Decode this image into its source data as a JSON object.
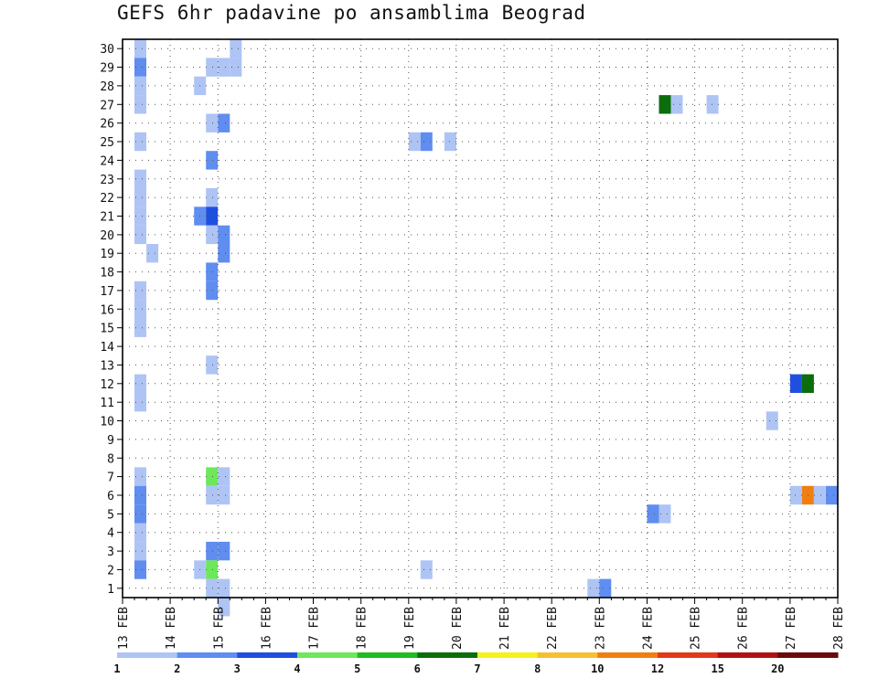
{
  "chart_data": {
    "type": "heatmap",
    "title": "GEFS 6hr padavine po ansamblima Beograd",
    "x_tick_labels": [
      "13 FEB",
      "14 FEB",
      "15 FEB",
      "16 FEB",
      "17 FEB",
      "18 FEB",
      "19 FEB",
      "20 FEB",
      "21 FEB",
      "22 FEB",
      "23 FEB",
      "24 FEB",
      "25 FEB",
      "26 FEB",
      "27 FEB",
      "28 FEB"
    ],
    "y_tick_labels": [
      "1",
      "2",
      "3",
      "4",
      "5",
      "6",
      "7",
      "8",
      "9",
      "10",
      "11",
      "12",
      "13",
      "14",
      "15",
      "16",
      "17",
      "18",
      "19",
      "20",
      "21",
      "22",
      "23",
      "24",
      "25",
      "26",
      "27",
      "28",
      "29",
      "30"
    ],
    "x_range": [
      "13 FEB",
      "28 FEB"
    ],
    "y_range": [
      1,
      30
    ],
    "time_step_hours": 6,
    "grid": true,
    "legend": {
      "placement": "bottom",
      "labels": [
        "1",
        "2",
        "3",
        "4",
        "5",
        "6",
        "7",
        "8",
        "10",
        "12",
        "15",
        "20"
      ],
      "colors": [
        "#aec4f4",
        "#5f8df0",
        "#1f4fe0",
        "#6ce85a",
        "#1fbd1f",
        "#0a6e0a",
        "#f7f01a",
        "#f5c02f",
        "#f07f10",
        "#e03a1a",
        "#b01212",
        "#6a0a0a"
      ]
    },
    "cells": [
      {
        "x": "13 FEB 06Z",
        "member": 30,
        "value": 1.5
      },
      {
        "x": "13 FEB 06Z",
        "member": 29,
        "value": 2.5
      },
      {
        "x": "13 FEB 06Z",
        "member": 28,
        "value": 1.5
      },
      {
        "x": "13 FEB 06Z",
        "member": 27,
        "value": 1.5
      },
      {
        "x": "13 FEB 06Z",
        "member": 25,
        "value": 1.5
      },
      {
        "x": "13 FEB 06Z",
        "member": 23,
        "value": 1.5
      },
      {
        "x": "13 FEB 06Z",
        "member": 22,
        "value": 1.5
      },
      {
        "x": "13 FEB 06Z",
        "member": 21,
        "value": 1.5
      },
      {
        "x": "13 FEB 06Z",
        "member": 20,
        "value": 1.5
      },
      {
        "x": "13 FEB 12Z",
        "member": 19,
        "value": 1.5
      },
      {
        "x": "13 FEB 06Z",
        "member": 17,
        "value": 1.5
      },
      {
        "x": "13 FEB 06Z",
        "member": 16,
        "value": 1.5
      },
      {
        "x": "13 FEB 06Z",
        "member": 15,
        "value": 1.5
      },
      {
        "x": "13 FEB 06Z",
        "member": 12,
        "value": 1.5
      },
      {
        "x": "13 FEB 06Z",
        "member": 11,
        "value": 1.5
      },
      {
        "x": "13 FEB 06Z",
        "member": 7,
        "value": 1.5
      },
      {
        "x": "13 FEB 06Z",
        "member": 6,
        "value": 2.5
      },
      {
        "x": "13 FEB 06Z",
        "member": 5,
        "value": 2.5
      },
      {
        "x": "13 FEB 06Z",
        "member": 4,
        "value": 1.5
      },
      {
        "x": "13 FEB 06Z",
        "member": 3,
        "value": 1.5
      },
      {
        "x": "13 FEB 06Z",
        "member": 2,
        "value": 2.5
      },
      {
        "x": "15 FEB 06Z",
        "member": 30,
        "value": 1.5
      },
      {
        "x": "14 FEB 18Z",
        "member": 29,
        "value": 1.5
      },
      {
        "x": "15 FEB 00Z",
        "member": 29,
        "value": 1.5
      },
      {
        "x": "15 FEB 06Z",
        "member": 29,
        "value": 1.5
      },
      {
        "x": "14 FEB 12Z",
        "member": 28,
        "value": 1.5
      },
      {
        "x": "14 FEB 18Z",
        "member": 26,
        "value": 1.5
      },
      {
        "x": "15 FEB 00Z",
        "member": 26,
        "value": 2.5
      },
      {
        "x": "14 FEB 18Z",
        "member": 24,
        "value": 2.5
      },
      {
        "x": "14 FEB 18Z",
        "member": 22,
        "value": 1.5
      },
      {
        "x": "14 FEB 12Z",
        "member": 21,
        "value": 2.5
      },
      {
        "x": "14 FEB 18Z",
        "member": 21,
        "value": 3.5
      },
      {
        "x": "14 FEB 18Z",
        "member": 20,
        "value": 1.5
      },
      {
        "x": "15 FEB 00Z",
        "member": 20,
        "value": 2.5
      },
      {
        "x": "15 FEB 00Z",
        "member": 19,
        "value": 2.5
      },
      {
        "x": "14 FEB 18Z",
        "member": 18,
        "value": 2.5
      },
      {
        "x": "14 FEB 18Z",
        "member": 17,
        "value": 2.5
      },
      {
        "x": "14 FEB 18Z",
        "member": 13,
        "value": 1.5
      },
      {
        "x": "14 FEB 18Z",
        "member": 7,
        "value": 4.5
      },
      {
        "x": "15 FEB 00Z",
        "member": 7,
        "value": 1.5
      },
      {
        "x": "14 FEB 18Z",
        "member": 6,
        "value": 1.5
      },
      {
        "x": "15 FEB 00Z",
        "member": 6,
        "value": 1.5
      },
      {
        "x": "14 FEB 18Z",
        "member": 3,
        "value": 2.5
      },
      {
        "x": "15 FEB 00Z",
        "member": 3,
        "value": 2.5
      },
      {
        "x": "14 FEB 12Z",
        "member": 2,
        "value": 1.5
      },
      {
        "x": "14 FEB 18Z",
        "member": 2,
        "value": 4.5
      },
      {
        "x": "14 FEB 18Z",
        "member": 1,
        "value": 1.5
      },
      {
        "x": "15 FEB 00Z",
        "member": 1,
        "value": 1.5
      },
      {
        "x": "15 FEB 00Z",
        "member": 0,
        "value": 1.5
      },
      {
        "x": "19 FEB 00Z",
        "member": 25,
        "value": 1.5
      },
      {
        "x": "19 FEB 06Z",
        "member": 25,
        "value": 2.5
      },
      {
        "x": "19 FEB 18Z",
        "member": 25,
        "value": 1.5
      },
      {
        "x": "19 FEB 06Z",
        "member": 2,
        "value": 1.5
      },
      {
        "x": "22 FEB 18Z",
        "member": 1,
        "value": 1.5
      },
      {
        "x": "23 FEB 00Z",
        "member": 1,
        "value": 2.5
      },
      {
        "x": "24 FEB 00Z",
        "member": 5,
        "value": 2.5
      },
      {
        "x": "24 FEB 06Z",
        "member": 5,
        "value": 1.5
      },
      {
        "x": "24 FEB 06Z",
        "member": 27,
        "value": 6.5
      },
      {
        "x": "24 FEB 12Z",
        "member": 27,
        "value": 1.5
      },
      {
        "x": "25 FEB 06Z",
        "member": 27,
        "value": 1.5
      },
      {
        "x": "26 FEB 12Z",
        "member": 10,
        "value": 1.5
      },
      {
        "x": "27 FEB 00Z",
        "member": 12,
        "value": 3.5
      },
      {
        "x": "27 FEB 06Z",
        "member": 12,
        "value": 6.5
      },
      {
        "x": "27 FEB 00Z",
        "member": 6,
        "value": 1.5
      },
      {
        "x": "27 FEB 06Z",
        "member": 6,
        "value": 11
      },
      {
        "x": "27 FEB 12Z",
        "member": 6,
        "value": 1.5
      },
      {
        "x": "27 FEB 18Z",
        "member": 6,
        "value": 2.5
      }
    ]
  }
}
